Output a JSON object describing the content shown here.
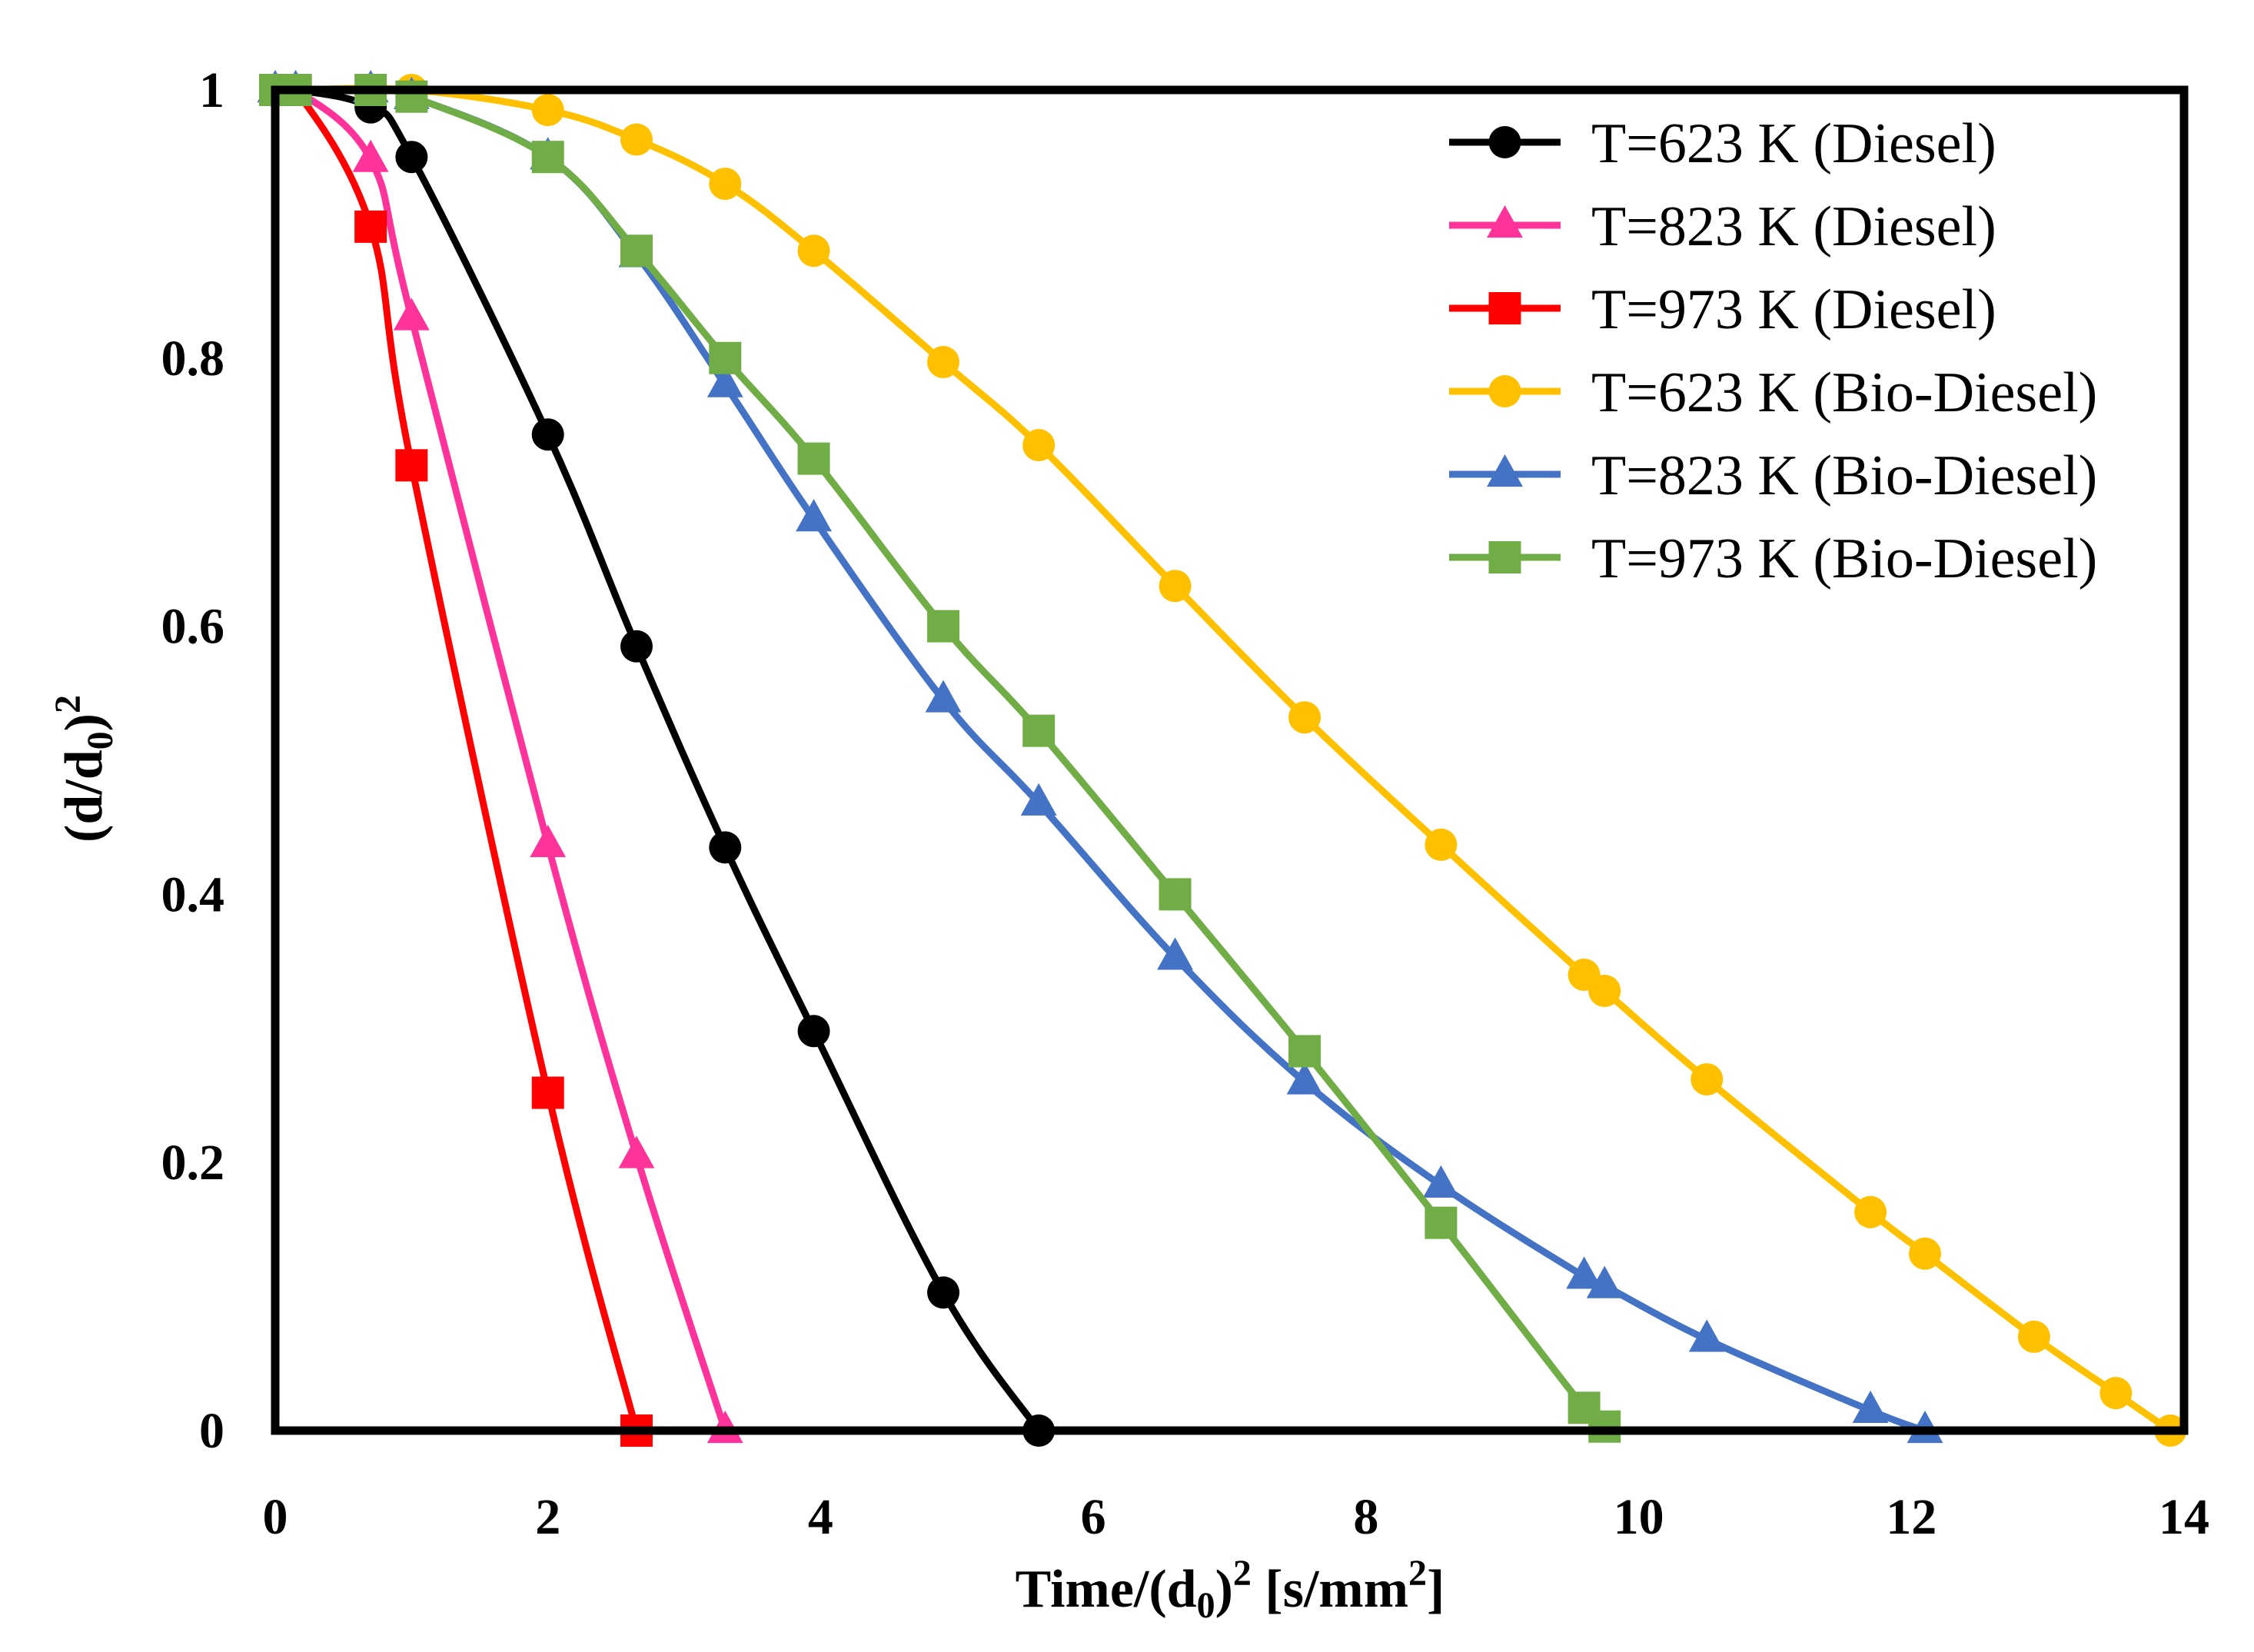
{
  "chart_data": {
    "type": "line",
    "xlabel": "Time/(d0)² [s/mm²]",
    "ylabel": "(d/d0)²",
    "xlabel_parts": {
      "main": "Time/(d",
      "sub": "0",
      "mid": ")",
      "sup": "2",
      "end": " [s/mm",
      "sup2": "2",
      "close": "]"
    },
    "ylabel_parts": {
      "main": "(d/d",
      "sub": "0",
      "mid": ")",
      "sup": "2"
    },
    "xlim": [
      0,
      14
    ],
    "ylim": [
      0,
      1
    ],
    "x_ticks": [
      0,
      2,
      4,
      6,
      8,
      10,
      12,
      14
    ],
    "y_ticks": [
      0,
      0.2,
      0.4,
      0.6,
      0.8,
      1
    ],
    "x_tick_labels": [
      "0",
      "2",
      "4",
      "6",
      "8",
      "10",
      "12",
      "14"
    ],
    "y_tick_labels": [
      "0",
      "0.2",
      "0.4",
      "0.6",
      "0.8",
      "1"
    ],
    "grid": false,
    "legend_position": "top-right",
    "series": [
      {
        "name": "T=623 K (Diesel)",
        "color": "#000000",
        "marker": "circle",
        "x": [
          0,
          0.15,
          0.7,
          1.0,
          2.0,
          2.65,
          3.3,
          3.95,
          4.9,
          5.6
        ],
        "y": [
          1.0,
          1.0,
          0.987,
          0.95,
          0.743,
          0.585,
          0.435,
          0.298,
          0.103,
          0.0
        ]
      },
      {
        "name": "T=823 K (Diesel)",
        "color": "#FF3399",
        "marker": "triangle",
        "x": [
          0,
          0.15,
          0.7,
          1.0,
          2.0,
          2.65,
          3.3
        ],
        "y": [
          1.0,
          1.0,
          0.948,
          0.83,
          0.437,
          0.205,
          0.0
        ]
      },
      {
        "name": "T=973 K (Diesel)",
        "color": "#FF0000",
        "marker": "square",
        "x": [
          0,
          0.15,
          0.7,
          1.0,
          2.0,
          2.65
        ],
        "y": [
          1.0,
          1.0,
          0.898,
          0.72,
          0.252,
          0.0
        ]
      },
      {
        "name": "T=623 K (Bio-Diesel)",
        "color": "#FFC000",
        "marker": "circle",
        "x": [
          0,
          0.15,
          1.0,
          2.0,
          2.65,
          3.3,
          3.95,
          4.9,
          5.6,
          6.6,
          7.55,
          8.55,
          9.6,
          9.75,
          10.5,
          11.7,
          12.1,
          12.9,
          13.5,
          13.9
        ],
        "y": [
          1.0,
          1.0,
          1.0,
          0.985,
          0.963,
          0.93,
          0.88,
          0.797,
          0.735,
          0.63,
          0.532,
          0.437,
          0.34,
          0.328,
          0.262,
          0.163,
          0.132,
          0.07,
          0.028,
          0.0
        ]
      },
      {
        "name": "T=823 K (Bio-Diesel)",
        "color": "#4472C4",
        "marker": "triangle",
        "x": [
          0,
          0.15,
          0.7,
          1.0,
          2.0,
          2.65,
          3.3,
          3.95,
          4.9,
          5.6,
          6.6,
          7.55,
          8.55,
          9.6,
          9.75,
          10.5,
          11.7,
          12.1
        ],
        "y": [
          1.0,
          1.0,
          1.0,
          0.995,
          0.95,
          0.877,
          0.78,
          0.68,
          0.545,
          0.468,
          0.353,
          0.26,
          0.183,
          0.115,
          0.108,
          0.068,
          0.015,
          0.0
        ]
      },
      {
        "name": "T=973 K (Bio-Diesel)",
        "color": "#70AD47",
        "marker": "square",
        "x": [
          0,
          0.15,
          0.7,
          1.0,
          2.0,
          2.65,
          3.3,
          3.95,
          4.9,
          5.6,
          6.6,
          7.55,
          8.55,
          9.6,
          9.75
        ],
        "y": [
          1.0,
          1.0,
          1.0,
          0.995,
          0.95,
          0.88,
          0.8,
          0.725,
          0.6,
          0.522,
          0.4,
          0.283,
          0.155,
          0.017,
          0.003
        ]
      }
    ]
  }
}
